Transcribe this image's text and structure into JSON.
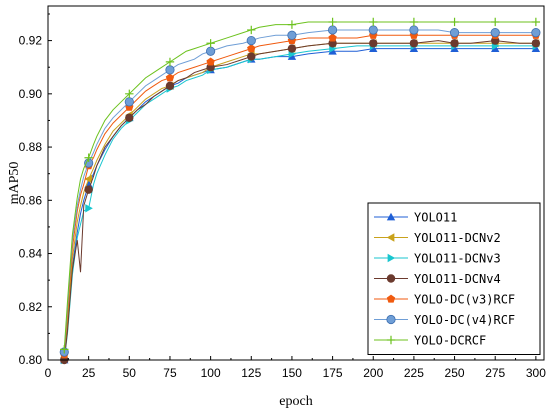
{
  "chart_data": {
    "type": "line",
    "xlabel": "epoch",
    "ylabel": "mAP50",
    "xlim": [
      0,
      305
    ],
    "ylim": [
      0.8,
      0.933
    ],
    "xticks": [
      0,
      25,
      50,
      75,
      100,
      125,
      150,
      175,
      200,
      225,
      250,
      275,
      300
    ],
    "yticks": [
      0.8,
      0.82,
      0.84,
      0.86,
      0.88,
      0.9,
      0.92
    ],
    "ytick_labels": [
      "0.80",
      "0.82",
      "0.84",
      "0.86",
      "0.88",
      "0.90",
      "0.92"
    ],
    "grid": false,
    "legend_position": "bottom-right",
    "x": [
      10,
      12,
      15,
      18,
      20,
      22,
      25,
      28,
      30,
      35,
      40,
      45,
      50,
      55,
      60,
      65,
      70,
      75,
      80,
      85,
      90,
      95,
      100,
      110,
      120,
      125,
      130,
      140,
      150,
      160,
      175,
      190,
      200,
      210,
      225,
      240,
      250,
      260,
      275,
      290,
      300
    ],
    "series": [
      {
        "name": "YOLO11",
        "color": "#1f5fd6",
        "marker": "triangle-up",
        "values": [
          0.8,
          0.812,
          0.835,
          0.848,
          0.855,
          0.86,
          0.866,
          0.87,
          0.873,
          0.879,
          0.884,
          0.888,
          0.891,
          0.894,
          0.897,
          0.899,
          0.901,
          0.903,
          0.904,
          0.906,
          0.907,
          0.908,
          0.909,
          0.91,
          0.912,
          0.913,
          0.913,
          0.914,
          0.914,
          0.915,
          0.916,
          0.916,
          0.917,
          0.917,
          0.917,
          0.917,
          0.917,
          0.917,
          0.917,
          0.917,
          0.917
        ]
      },
      {
        "name": "YOLO11-DCNv2",
        "color": "#c9a21c",
        "marker": "triangle-left",
        "values": [
          0.801,
          0.814,
          0.838,
          0.852,
          0.858,
          0.863,
          0.868,
          0.872,
          0.875,
          0.881,
          0.886,
          0.889,
          0.892,
          0.895,
          0.898,
          0.9,
          0.902,
          0.903,
          0.905,
          0.906,
          0.907,
          0.908,
          0.91,
          0.912,
          0.914,
          0.915,
          0.915,
          0.916,
          0.917,
          0.918,
          0.919,
          0.919,
          0.919,
          0.919,
          0.919,
          0.919,
          0.919,
          0.919,
          0.919,
          0.919,
          0.919
        ]
      },
      {
        "name": "YOLO11-DCNv3",
        "color": "#19c6cf",
        "marker": "triangle-right",
        "values": [
          0.8,
          0.81,
          0.832,
          0.846,
          0.851,
          0.856,
          0.857,
          0.866,
          0.87,
          0.877,
          0.883,
          0.887,
          0.89,
          0.893,
          0.896,
          0.898,
          0.9,
          0.902,
          0.903,
          0.905,
          0.906,
          0.907,
          0.909,
          0.91,
          0.912,
          0.913,
          0.913,
          0.914,
          0.915,
          0.916,
          0.917,
          0.918,
          0.918,
          0.918,
          0.918,
          0.918,
          0.918,
          0.918,
          0.918,
          0.918,
          0.918
        ]
      },
      {
        "name": "YOLO11-DCNv4",
        "color": "#6b3a2e",
        "marker": "circle",
        "values": [
          0.8,
          0.811,
          0.834,
          0.845,
          0.833,
          0.858,
          0.864,
          0.869,
          0.873,
          0.88,
          0.884,
          0.888,
          0.891,
          0.894,
          0.896,
          0.899,
          0.901,
          0.903,
          0.905,
          0.906,
          0.908,
          0.909,
          0.91,
          0.911,
          0.913,
          0.914,
          0.915,
          0.916,
          0.917,
          0.918,
          0.919,
          0.919,
          0.919,
          0.919,
          0.919,
          0.92,
          0.919,
          0.919,
          0.92,
          0.919,
          0.919
        ]
      },
      {
        "name": "YOLO-DC(v3)RCF",
        "color": "#f05a0f",
        "marker": "pentagon",
        "values": [
          0.802,
          0.818,
          0.842,
          0.856,
          0.862,
          0.866,
          0.873,
          0.876,
          0.879,
          0.885,
          0.889,
          0.892,
          0.895,
          0.898,
          0.901,
          0.903,
          0.905,
          0.906,
          0.908,
          0.909,
          0.91,
          0.911,
          0.912,
          0.914,
          0.916,
          0.917,
          0.918,
          0.919,
          0.92,
          0.921,
          0.921,
          0.921,
          0.922,
          0.922,
          0.922,
          0.922,
          0.922,
          0.922,
          0.922,
          0.922,
          0.922
        ]
      },
      {
        "name": "YOLO-DC(v4)RCF",
        "color": "#6f9ed6",
        "marker": "circle-light",
        "values": [
          0.803,
          0.82,
          0.845,
          0.858,
          0.864,
          0.869,
          0.874,
          0.878,
          0.881,
          0.887,
          0.891,
          0.894,
          0.897,
          0.9,
          0.903,
          0.905,
          0.907,
          0.909,
          0.911,
          0.912,
          0.913,
          0.915,
          0.916,
          0.918,
          0.919,
          0.92,
          0.921,
          0.922,
          0.922,
          0.923,
          0.924,
          0.924,
          0.924,
          0.924,
          0.924,
          0.924,
          0.923,
          0.923,
          0.923,
          0.923,
          0.923
        ]
      },
      {
        "name": "YOLO-DCRCF",
        "color": "#6cc21e",
        "marker": "plus",
        "values": [
          0.804,
          0.822,
          0.847,
          0.861,
          0.868,
          0.872,
          0.876,
          0.881,
          0.884,
          0.89,
          0.894,
          0.897,
          0.9,
          0.903,
          0.906,
          0.908,
          0.91,
          0.912,
          0.914,
          0.916,
          0.917,
          0.918,
          0.919,
          0.921,
          0.923,
          0.924,
          0.925,
          0.926,
          0.926,
          0.927,
          0.927,
          0.927,
          0.927,
          0.927,
          0.927,
          0.927,
          0.927,
          0.927,
          0.927,
          0.927,
          0.927
        ]
      }
    ]
  }
}
